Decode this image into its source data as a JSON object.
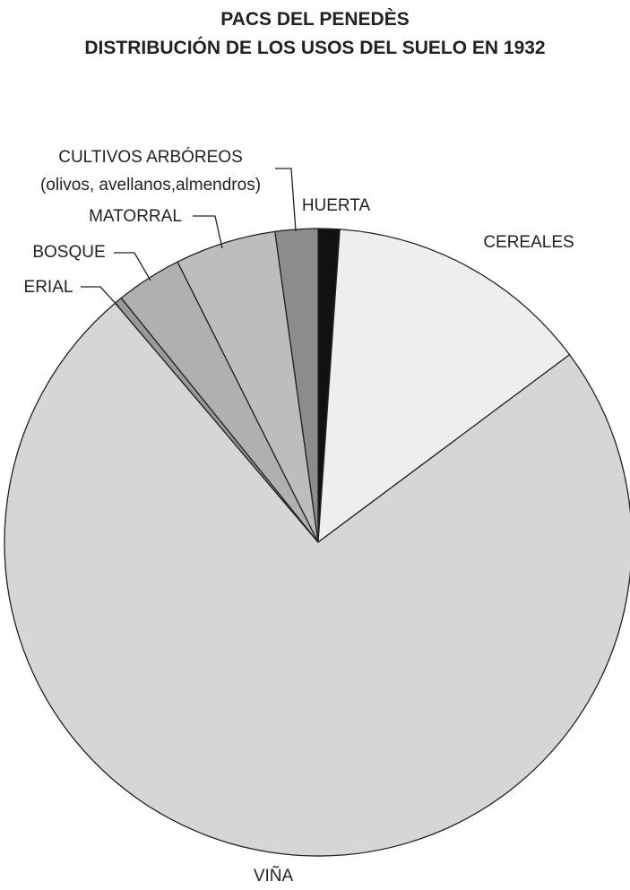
{
  "chart_data": {
    "type": "pie",
    "title": "PACS DEL PENEDÈS",
    "subtitle": "DISTRIBUCIÓN DE LOS USOS DEL SUELO EN 1932",
    "categories": [
      "HUERTA",
      "CEREALES",
      "VIÑA",
      "ERIAL",
      "BOSQUE",
      "MATORRAL",
      "CULTIVOS ARBÓREOS\n(olivos, avellanos,almendros)"
    ],
    "values": [
      1.1,
      13.7,
      74.0,
      0.4,
      3.4,
      5.2,
      2.2
    ],
    "colors": [
      "#111111",
      "#eeeeee",
      "#d6d6d6",
      "#9a9a9a",
      "#b0b0b0",
      "#bdbdbd",
      "#8c8c8c"
    ]
  }
}
